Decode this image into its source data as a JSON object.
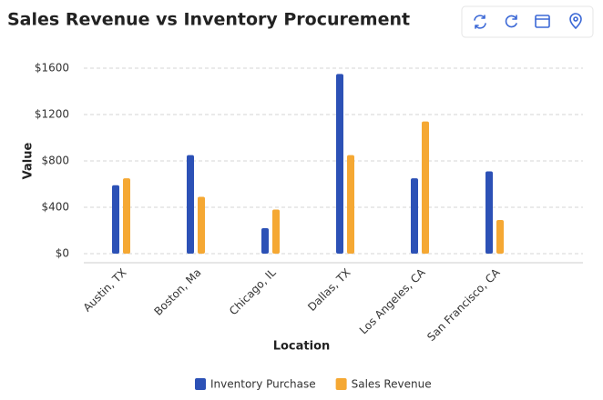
{
  "chart_data": {
    "type": "bar",
    "title": "Sales Revenue vs Inventory Procurement",
    "x_label": "Location",
    "y_label": "Value",
    "categories": [
      "Austin, TX",
      "Boston, Ma",
      "Chicago, IL",
      "Dallas, TX",
      "Los Angeles, CA",
      "San Francisco, CA"
    ],
    "series": [
      {
        "name": "Inventory Purchase",
        "color": "#2c51b6",
        "values": [
          590,
          850,
          220,
          1550,
          650,
          710
        ]
      },
      {
        "name": "Sales Revenue",
        "color": "#f5a833",
        "values": [
          650,
          490,
          380,
          850,
          1140,
          290
        ]
      }
    ],
    "ylim": [
      0,
      1600
    ],
    "yticks": [
      {
        "value": 0,
        "label": "$0"
      },
      {
        "value": 400,
        "label": "$400"
      },
      {
        "value": 800,
        "label": "$800"
      },
      {
        "value": 1200,
        "label": "$1200"
      },
      {
        "value": 1600,
        "label": "$1600"
      }
    ],
    "grid": true,
    "legend": "bottom"
  }
}
